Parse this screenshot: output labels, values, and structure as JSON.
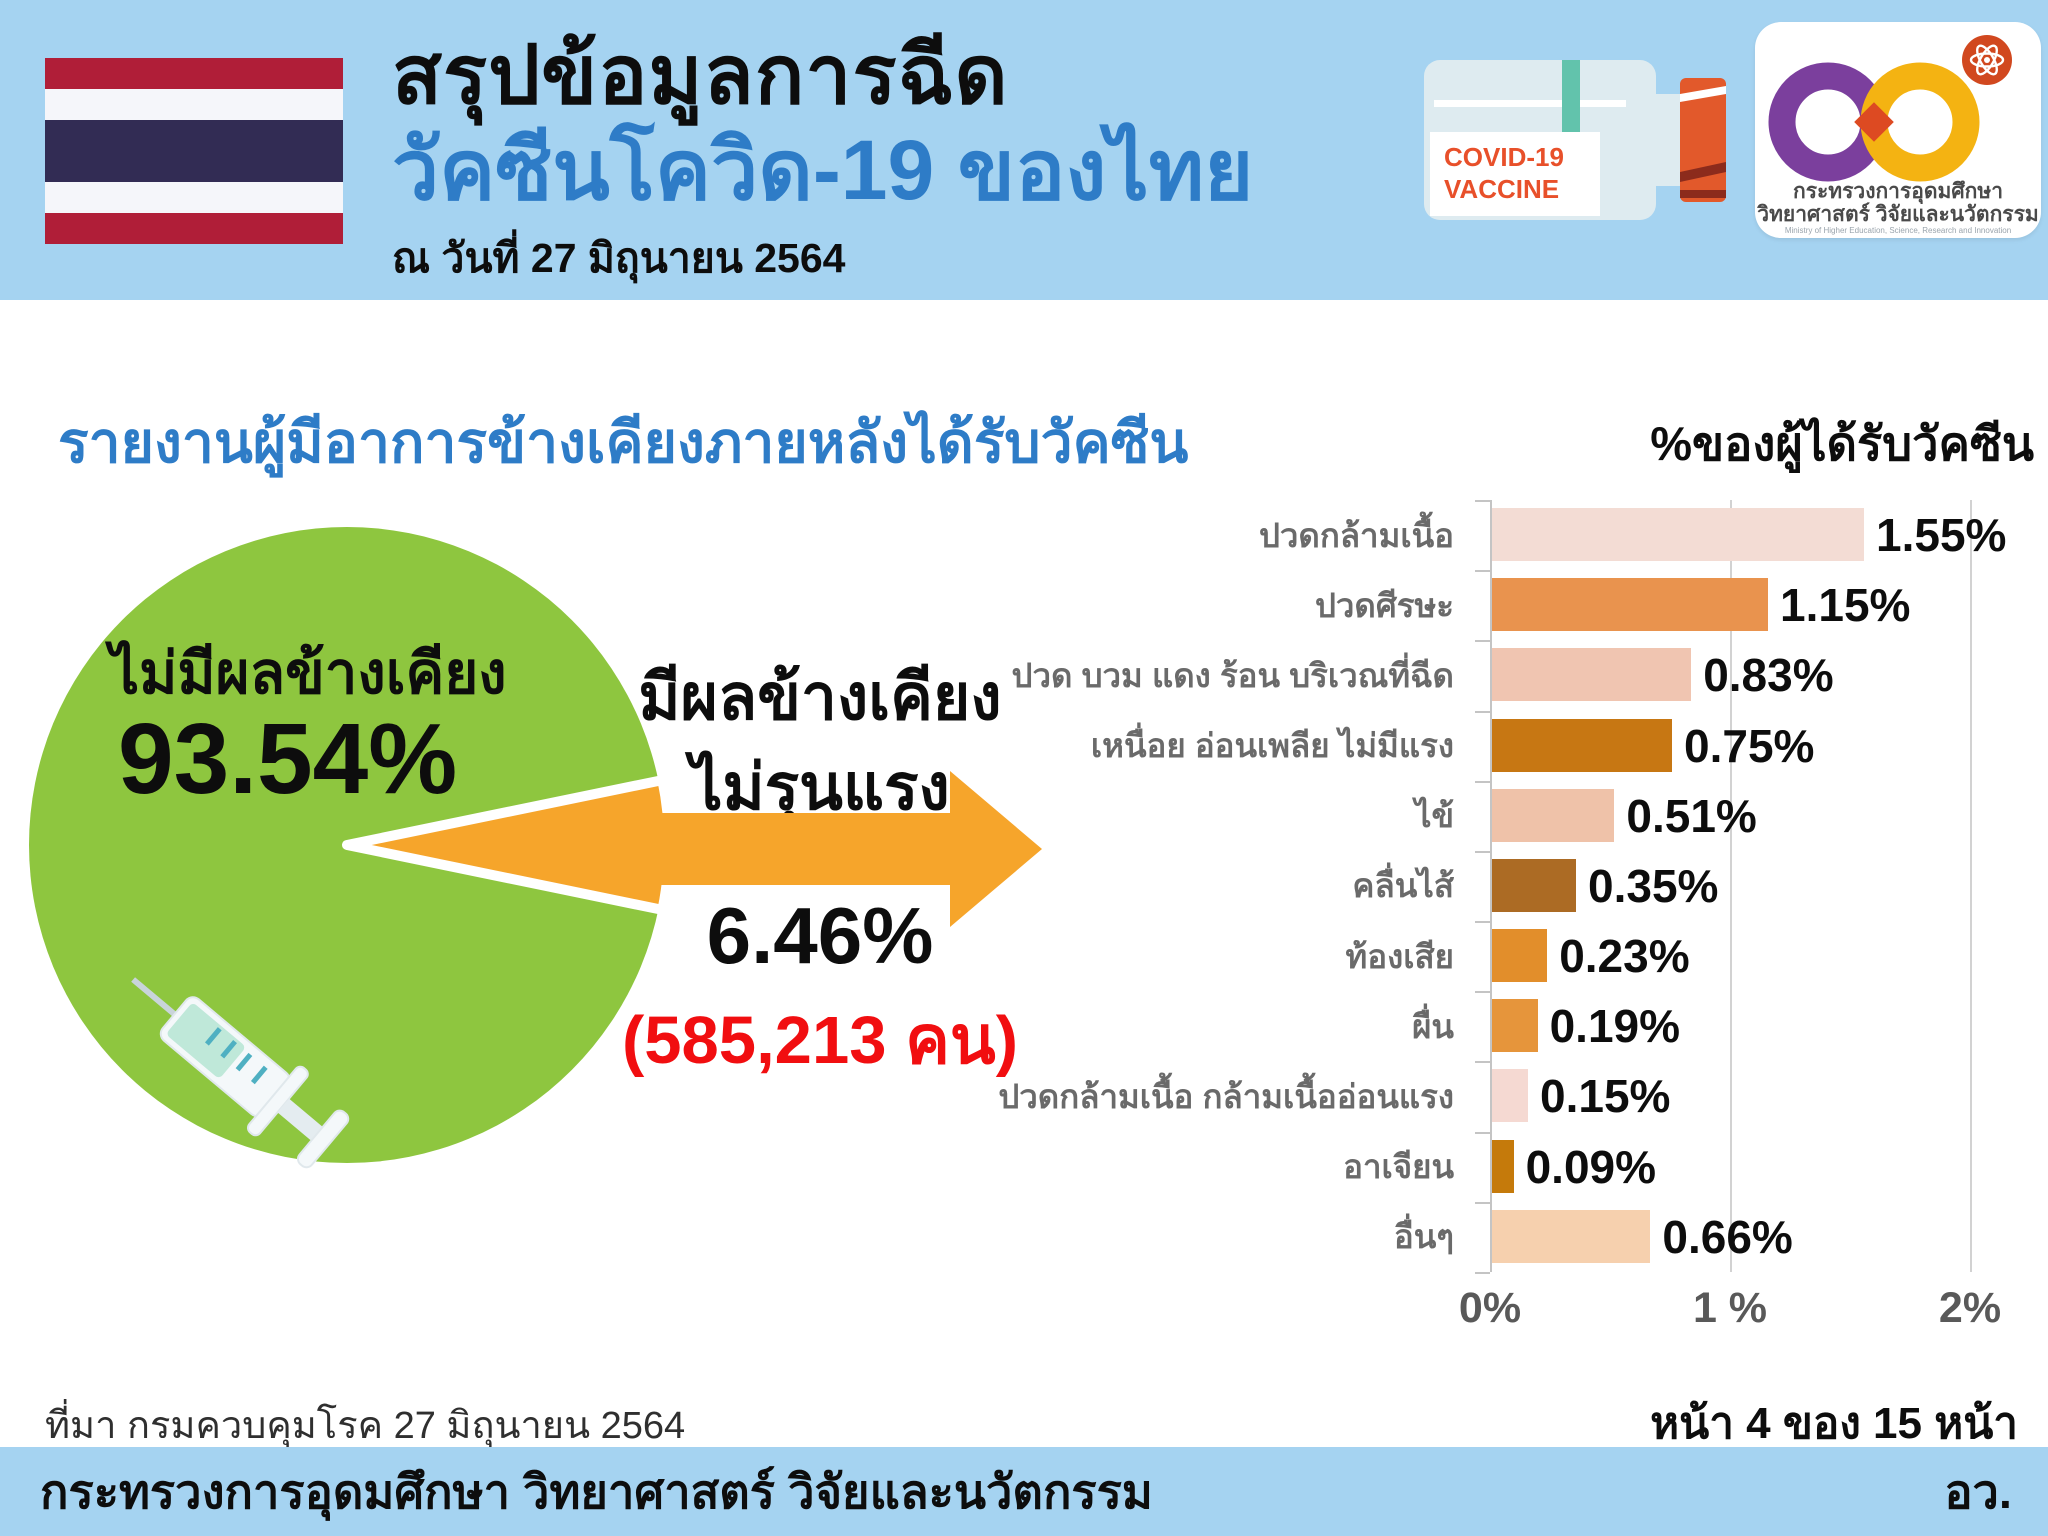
{
  "header": {
    "title_line1": "สรุปข้อมูลการฉีด",
    "title_line2": "วัคซีนโควิด-19 ของไทย",
    "date_line": "ณ วันที่ 27 มิถุนายน 2564",
    "vial": {
      "line1": "COVID-19",
      "line2": "VACCINE"
    },
    "logo": {
      "thai_line1": "กระทรวงการอุดมศึกษา",
      "thai_line2": "วิทยาศาสตร์ วิจัยและนวัตกรรม",
      "english_line": "Ministry of Higher Education, Science, Research and Innovation"
    }
  },
  "main": {
    "section_title": "รายงานผู้มีอาการข้างเคียงภายหลังได้รับวัคซีน"
  },
  "chart_data": [
    {
      "type": "pie",
      "title": "รายงานผู้มีอาการข้างเคียงภายหลังได้รับวัคซีน",
      "slices": [
        {
          "label": "ไม่มีผลข้างเคียง",
          "value": 93.54,
          "value_label": "93.54%",
          "color": "#8EC63F"
        },
        {
          "label": "มีผลข้างเคียง ไม่รุนแรง",
          "label_lines": [
            "มีผลข้างเคียง",
            "ไม่รุนแรง"
          ],
          "value": 6.46,
          "value_label": "6.46%",
          "count_label": "(585,213 คน)",
          "color": "#F6A52B"
        }
      ]
    },
    {
      "type": "bar",
      "orientation": "horizontal",
      "title": "%ของผู้ได้รับวัคซีน",
      "categories": [
        "ปวดกล้ามเนื้อ",
        "ปวดศีรษะ",
        "ปวด บวม แดง ร้อน บริเวณที่ฉีด",
        "เหนื่อย อ่อนเพลีย ไม่มีแรง",
        "ไข้",
        "คลื่นไส้",
        "ท้องเสีย",
        "ผื่น",
        "ปวดกล้ามเนื้อ กล้ามเนื้ออ่อนแรง",
        "อาเจียน",
        "อื่นๆ"
      ],
      "values": [
        1.55,
        1.15,
        0.83,
        0.75,
        0.51,
        0.35,
        0.23,
        0.19,
        0.15,
        0.09,
        0.66
      ],
      "value_labels": [
        "1.55%",
        "1.15%",
        "0.83%",
        "0.75%",
        "0.51%",
        "0.35%",
        "0.23%",
        "0.19%",
        "0.15%",
        "0.09%",
        "0.66%"
      ],
      "bar_colors": [
        "#F3DCD4",
        "#E9934E",
        "#F0C5B1",
        "#C77713",
        "#EFC2A9",
        "#AC6B24",
        "#E28E2B",
        "#E6953B",
        "#F5D9D2",
        "#C57A0B",
        "#F6D0AE"
      ],
      "xlim": [
        0,
        2
      ],
      "x_ticks": [
        "0%",
        "1 %",
        "2%"
      ],
      "grid": true,
      "legend": false
    }
  ],
  "footer": {
    "source": "ที่มา กรมควบคุมโรค 27 มิถุนายน 2564",
    "page_info": "หน้า 4 ของ 15 หน้า",
    "ministry": "กระทรวงการอุดมศึกษา วิทยาศาสตร์ วิจัยและนวัตกรรม",
    "abbrev": "อว."
  },
  "colors": {
    "header_bg": "#A5D3F1",
    "title_blue": "#2E7CC7",
    "pie_green": "#8EC63F",
    "accent_orange": "#F6A52B",
    "count_red": "#F10E10",
    "category_gray": "#6A6A6A"
  }
}
